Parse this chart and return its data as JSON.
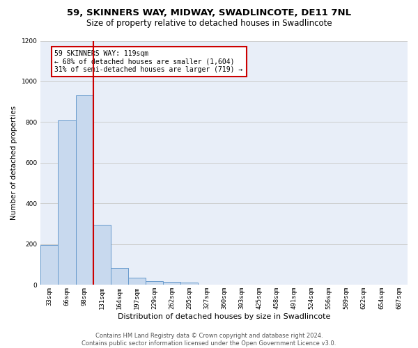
{
  "title1": "59, SKINNERS WAY, MIDWAY, SWADLINCOTE, DE11 7NL",
  "title2": "Size of property relative to detached houses in Swadlincote",
  "xlabel": "Distribution of detached houses by size in Swadlincote",
  "ylabel": "Number of detached properties",
  "categories": [
    "33sqm",
    "66sqm",
    "98sqm",
    "131sqm",
    "164sqm",
    "197sqm",
    "229sqm",
    "262sqm",
    "295sqm",
    "327sqm",
    "360sqm",
    "393sqm",
    "425sqm",
    "458sqm",
    "491sqm",
    "524sqm",
    "556sqm",
    "589sqm",
    "622sqm",
    "654sqm",
    "687sqm"
  ],
  "values": [
    195,
    810,
    930,
    295,
    85,
    35,
    20,
    15,
    10,
    0,
    0,
    0,
    0,
    0,
    0,
    0,
    0,
    0,
    0,
    0,
    0
  ],
  "bar_color": "#c8d9ee",
  "bar_edge_color": "#6699cc",
  "vline_color": "#cc0000",
  "annotation_text": "59 SKINNERS WAY: 119sqm\n← 68% of detached houses are smaller (1,604)\n31% of semi-detached houses are larger (719) →",
  "annotation_box_color": "#ffffff",
  "annotation_box_edge": "#cc0000",
  "ylim": [
    0,
    1200
  ],
  "yticks": [
    0,
    200,
    400,
    600,
    800,
    1000,
    1200
  ],
  "grid_color": "#cccccc",
  "bg_color": "#e8eef8",
  "footer1": "Contains HM Land Registry data © Crown copyright and database right 2024.",
  "footer2": "Contains public sector information licensed under the Open Government Licence v3.0.",
  "title1_fontsize": 9.5,
  "title2_fontsize": 8.5,
  "ylabel_fontsize": 7.5,
  "xlabel_fontsize": 8,
  "tick_fontsize": 6.5,
  "ann_fontsize": 7,
  "footer_fontsize": 6
}
